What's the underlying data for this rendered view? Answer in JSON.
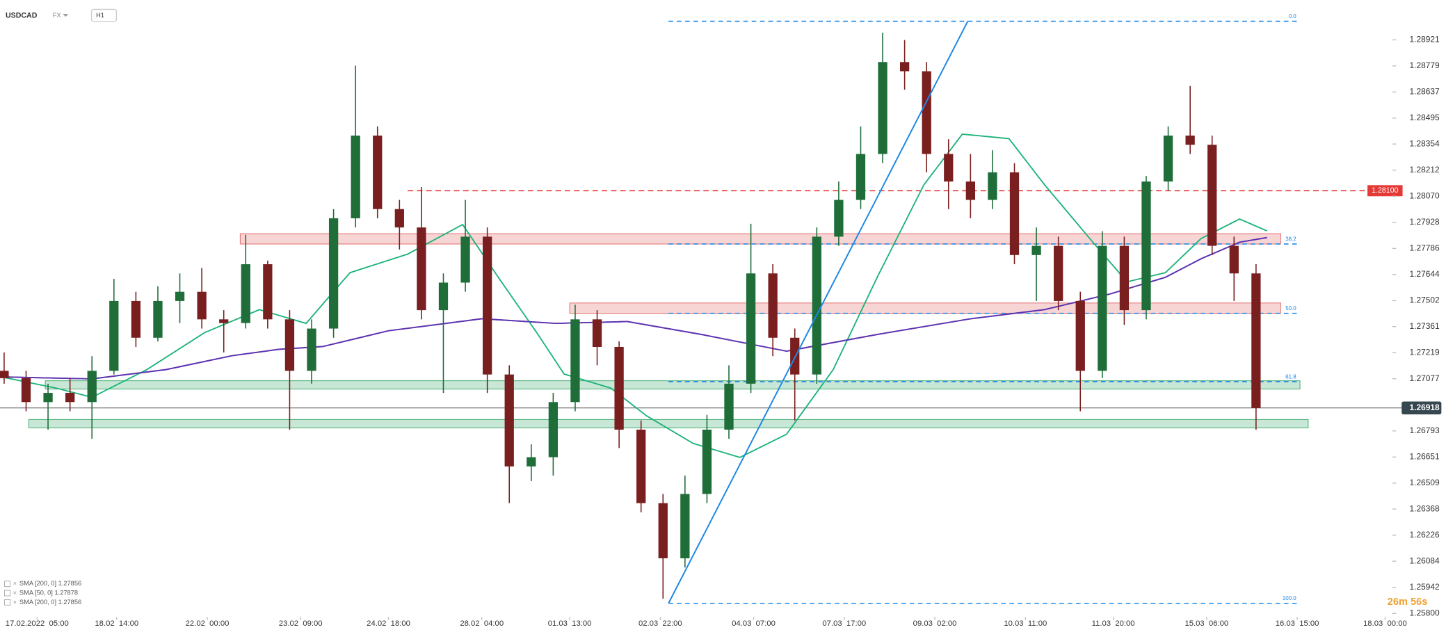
{
  "header": {
    "symbol": "USDCAD",
    "market": "FX",
    "interval": "H1"
  },
  "countdown": "26m 56s",
  "chart_data": {
    "type": "candlestick",
    "x": [
      -12,
      -4,
      4,
      12,
      20,
      28,
      36,
      44,
      52,
      60,
      68,
      76,
      84,
      92,
      100,
      108,
      116,
      124,
      132,
      140,
      148,
      156,
      164,
      172,
      180,
      188,
      196,
      204,
      212,
      220,
      228,
      236,
      244,
      252,
      260,
      268,
      276,
      284,
      292,
      300,
      308,
      316,
      324,
      332,
      340,
      348,
      356,
      364,
      372,
      380,
      388,
      396,
      404,
      412,
      420,
      428,
      436,
      444
    ],
    "candles": [
      [
        1.2712,
        1.2722,
        1.2705,
        1.2708
      ],
      [
        1.2708,
        1.2712,
        1.269,
        1.2695
      ],
      [
        1.2695,
        1.2705,
        1.268,
        1.27
      ],
      [
        1.27,
        1.2708,
        1.269,
        1.2695
      ],
      [
        1.2695,
        1.272,
        1.2675,
        1.2712
      ],
      [
        1.2712,
        1.2762,
        1.271,
        1.275
      ],
      [
        1.275,
        1.2755,
        1.2725,
        1.273
      ],
      [
        1.273,
        1.2758,
        1.2728,
        1.275
      ],
      [
        1.275,
        1.2765,
        1.2738,
        1.2755
      ],
      [
        1.2755,
        1.2768,
        1.2735,
        1.274
      ],
      [
        1.274,
        1.2745,
        1.2722,
        1.2738
      ],
      [
        1.2738,
        1.2786,
        1.2735,
        1.277
      ],
      [
        1.277,
        1.2772,
        1.2735,
        1.274
      ],
      [
        1.274,
        1.2745,
        1.268,
        1.2712
      ],
      [
        1.2712,
        1.274,
        1.2705,
        1.2735
      ],
      [
        1.2735,
        1.28,
        1.273,
        1.2795
      ],
      [
        1.2795,
        1.2878,
        1.279,
        1.284
      ],
      [
        1.284,
        1.2845,
        1.2795,
        1.28
      ],
      [
        1.28,
        1.2805,
        1.2778,
        1.279
      ],
      [
        1.279,
        1.2812,
        1.274,
        1.2745
      ],
      [
        1.2745,
        1.2765,
        1.27,
        1.276
      ],
      [
        1.276,
        1.2805,
        1.2755,
        1.2785
      ],
      [
        1.2785,
        1.279,
        1.27,
        1.271
      ],
      [
        1.271,
        1.2715,
        1.264,
        1.266
      ],
      [
        1.266,
        1.2672,
        1.2652,
        1.2665
      ],
      [
        1.2665,
        1.27,
        1.2655,
        1.2695
      ],
      [
        1.2695,
        1.2748,
        1.269,
        1.274
      ],
      [
        1.274,
        1.2745,
        1.2715,
        1.2725
      ],
      [
        1.2725,
        1.2728,
        1.267,
        1.268
      ],
      [
        1.268,
        1.2685,
        1.2635,
        1.264
      ],
      [
        1.264,
        1.2645,
        1.2588,
        1.261
      ],
      [
        1.261,
        1.2655,
        1.2605,
        1.2645
      ],
      [
        1.2645,
        1.2688,
        1.264,
        1.268
      ],
      [
        1.268,
        1.2715,
        1.2675,
        1.2705
      ],
      [
        1.2705,
        1.2792,
        1.27,
        1.2765
      ],
      [
        1.2765,
        1.277,
        1.272,
        1.273
      ],
      [
        1.273,
        1.2735,
        1.2685,
        1.271
      ],
      [
        1.271,
        1.279,
        1.2705,
        1.2785
      ],
      [
        1.2785,
        1.2815,
        1.278,
        1.2805
      ],
      [
        1.2805,
        1.2845,
        1.28,
        1.283
      ],
      [
        1.283,
        1.2896,
        1.2825,
        1.288
      ],
      [
        1.288,
        1.2892,
        1.2865,
        1.2875
      ],
      [
        1.2875,
        1.288,
        1.282,
        1.283
      ],
      [
        1.283,
        1.2838,
        1.28,
        1.2815
      ],
      [
        1.2815,
        1.283,
        1.2795,
        1.2805
      ],
      [
        1.2805,
        1.2832,
        1.28,
        1.282
      ],
      [
        1.282,
        1.2825,
        1.277,
        1.2775
      ],
      [
        1.2775,
        1.279,
        1.275,
        1.278
      ],
      [
        1.278,
        1.2785,
        1.2745,
        1.275
      ],
      [
        1.275,
        1.2755,
        1.269,
        1.2712
      ],
      [
        1.2712,
        1.2788,
        1.2708,
        1.278
      ],
      [
        1.278,
        1.2785,
        1.2737,
        1.2745
      ],
      [
        1.2745,
        1.2818,
        1.274,
        1.2815
      ],
      [
        1.2815,
        1.2845,
        1.281,
        1.284
      ],
      [
        1.284,
        1.2867,
        1.283,
        1.2835
      ],
      [
        1.2835,
        1.284,
        1.2775,
        1.278
      ],
      [
        1.278,
        1.2785,
        1.275,
        1.2765
      ],
      [
        1.2765,
        1.277,
        1.268,
        1.26918
      ]
    ],
    "up_color": "#1f6e3a",
    "down_color": "#7a1f1f",
    "series": [
      {
        "name": "SMA [200, 0] 1.27856",
        "color": "#5e35b1",
        "x": [
          -13,
          20,
          47,
          71,
          88,
          104,
          128,
          162,
          189,
          215,
          242,
          273,
          306,
          340,
          367,
          391,
          411,
          424,
          438,
          448
        ],
        "values": [
          1.27087,
          1.27076,
          1.27127,
          1.27202,
          1.27237,
          1.27252,
          1.27338,
          1.27403,
          1.27378,
          1.27388,
          1.27318,
          1.27227,
          1.27318,
          1.27403,
          1.27453,
          1.27539,
          1.27629,
          1.2773,
          1.2782,
          1.27845
        ]
      },
      {
        "name": "SMA [50, 0] 1.27878",
        "color": "#1db37a",
        "x": [
          -13,
          7,
          20,
          40,
          61,
          81,
          98,
          114,
          135,
          155,
          168,
          182,
          192,
          209,
          222,
          239,
          256,
          273,
          290,
          306,
          323,
          337,
          354,
          367,
          384,
          397,
          411,
          424,
          438,
          448
        ],
        "values": [
          1.27087,
          1.27026,
          1.26976,
          1.27127,
          1.27328,
          1.27453,
          1.27378,
          1.27654,
          1.27755,
          1.27916,
          1.27629,
          1.27328,
          1.27102,
          1.27026,
          1.26875,
          1.26725,
          1.26649,
          1.26775,
          1.27127,
          1.27629,
          1.28132,
          1.28408,
          1.28383,
          1.28132,
          1.2783,
          1.27604,
          1.27654,
          1.2784,
          1.27946,
          1.27881
        ]
      },
      {
        "name": "SMA [200, 0] 1.27856",
        "color": "#5e35b1",
        "x": [
          -13,
          20,
          47,
          71,
          88,
          104,
          128,
          162,
          189,
          215,
          242,
          273,
          306,
          340,
          367,
          391,
          411,
          424,
          438,
          448
        ],
        "values": [
          1.27087,
          1.27076,
          1.27127,
          1.27202,
          1.27237,
          1.27252,
          1.27338,
          1.27403,
          1.27378,
          1.27388,
          1.27318,
          1.27227,
          1.27318,
          1.27403,
          1.27453,
          1.27539,
          1.27629,
          1.2773,
          1.2782,
          1.27845
        ]
      }
    ],
    "xlim": [
      -13.5,
      493
    ],
    "ylim": [
      1.2578,
      1.29137
    ],
    "xticks": [
      {
        "value": 0,
        "label": "17.02.2022  05:00"
      },
      {
        "value": 29,
        "label": "18.02  14:00"
      },
      {
        "value": 62,
        "label": "22.02  00:00"
      },
      {
        "value": 96,
        "label": "23.02  09:00"
      },
      {
        "value": 128,
        "label": "24.02  18:00"
      },
      {
        "value": 162,
        "label": "28.02  04:00"
      },
      {
        "value": 194,
        "label": "01.03  13:00"
      },
      {
        "value": 227,
        "label": "02.03  22:00"
      },
      {
        "value": 261,
        "label": "04.03  07:00"
      },
      {
        "value": 294,
        "label": "07.03  17:00"
      },
      {
        "value": 327,
        "label": "09.03  02:00"
      },
      {
        "value": 360,
        "label": "10.03  11:00"
      },
      {
        "value": 392,
        "label": "11.03  20:00"
      },
      {
        "value": 426,
        "label": "15.03  06:00"
      },
      {
        "value": 459,
        "label": "16.03  15:00"
      },
      {
        "value": 491,
        "label": "18.03  00:00"
      }
    ],
    "yticks": [
      1.28921,
      1.28779,
      1.28637,
      1.28495,
      1.28354,
      1.28212,
      {
        "value": 1.2807,
        "label": "1.28070"
      },
      1.27928,
      1.27786,
      1.27644,
      1.27502,
      1.27361,
      1.27219,
      1.27077,
      1.26793,
      1.26651,
      1.26509,
      1.26368,
      1.26226,
      1.26084,
      1.25942,
      {
        "value": 1.258,
        "label": "1.25800"
      }
    ],
    "grid": false,
    "hline": {
      "value": 1.281,
      "label": "1.28100",
      "color": "#e53935",
      "x": 135
    },
    "last_price": 1.26918,
    "fibonacci": {
      "x": [
        230,
        460
      ],
      "color": "#1e88e5",
      "levels": [
        {
          "value": 1.29022,
          "label": "0.0"
        },
        {
          "value": 1.2781,
          "label": "38.2"
        },
        {
          "value": 1.27433,
          "label": "50.0"
        },
        {
          "value": 1.27061,
          "label": "61.8"
        },
        {
          "value": 1.25855,
          "label": "100.0"
        }
      ]
    },
    "trendline": {
      "x": [
        230,
        339
      ],
      "y": [
        1.25855,
        1.29022
      ],
      "color": "#1e88e5"
    },
    "zones": [
      {
        "x": [
          74,
          453
        ],
        "y": [
          1.2781,
          1.27866
        ],
        "color": "#e57373"
      },
      {
        "x": [
          194,
          453
        ],
        "y": [
          1.27433,
          1.27489
        ],
        "color": "#e57373"
      },
      {
        "x": [
          3,
          460
        ],
        "y": [
          1.27021,
          1.27066
        ],
        "color": "#4caf78"
      },
      {
        "x": [
          -3,
          463
        ],
        "y": [
          1.2681,
          1.26855
        ],
        "color": "#4caf78"
      }
    ]
  }
}
